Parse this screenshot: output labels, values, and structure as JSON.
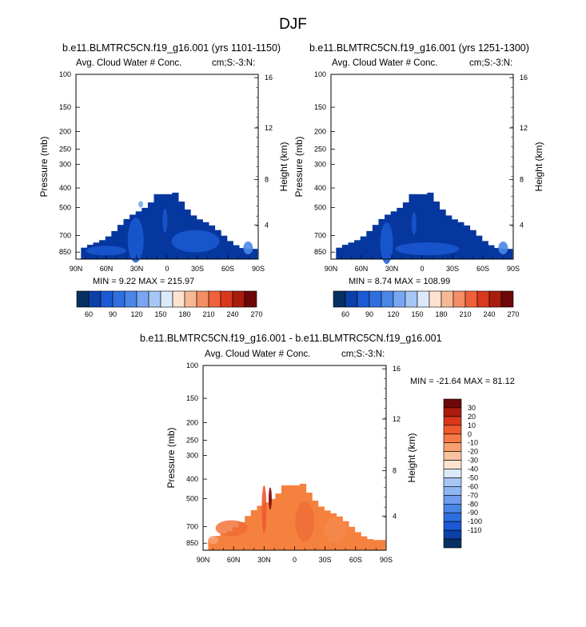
{
  "figure": {
    "title": "DJF"
  },
  "colors": {
    "cb1": [
      "#053061",
      "#0a40a8",
      "#1b5ad4",
      "#2e6fe0",
      "#4a86e8",
      "#78a6f0",
      "#a6c6f5",
      "#dbe9fb",
      "#fde3cf",
      "#f7b894",
      "#f48e64",
      "#f0603a",
      "#d9381c",
      "#aa1c0c",
      "#6d0808"
    ],
    "cb2": [
      "#6d0808",
      "#aa1c0c",
      "#d9381c",
      "#ef5a2e",
      "#f57a45",
      "#f7a070",
      "#f9c3a0",
      "#fde3cf",
      "#dbe9fb",
      "#a6c6f5",
      "#8db6f2",
      "#6f9cec",
      "#4a86e8",
      "#2e6fe0",
      "#1b5ad4",
      "#0a40a8",
      "#053061"
    ]
  },
  "chart_data": [
    {
      "type": "heatmap",
      "title": "b.e11.BLMTRC5CN.f19_g16.001 (yrs 1101-1150)",
      "left_label": "Avg. Cloud Water # Conc.",
      "right_label": "cm;S:-3:N:",
      "ylabel": "Pressure (mb)",
      "y2label": "Height (km)",
      "x_ticks": [
        "90N",
        "60N",
        "30N",
        "0",
        "30S",
        "60S",
        "90S"
      ],
      "y_ticks": [
        "100",
        "150",
        "200",
        "250",
        "300",
        "400",
        "500",
        "700",
        "850"
      ],
      "y2_ticks": [
        "16",
        "12",
        "8",
        "4"
      ],
      "xlim": [
        90,
        -90
      ],
      "ylim": [
        1000,
        100
      ],
      "stats_text": "MIN =   9.22  MAX = 215.97",
      "min": 9.22,
      "max": 215.97
    },
    {
      "type": "heatmap",
      "title": "b.e11.BLMTRC5CN.f19_g16.001 (yrs 1251-1300)",
      "left_label": "Avg. Cloud Water # Conc.",
      "right_label": "cm;S:-3:N:",
      "ylabel": "Pressure (mb)",
      "y2label": "Height (km)",
      "x_ticks": [
        "90N",
        "60N",
        "30N",
        "0",
        "30S",
        "60S",
        "90S"
      ],
      "y_ticks": [
        "100",
        "150",
        "200",
        "250",
        "300",
        "400",
        "500",
        "700",
        "850"
      ],
      "y2_ticks": [
        "16",
        "12",
        "8",
        "4"
      ],
      "xlim": [
        90,
        -90
      ],
      "ylim": [
        1000,
        100
      ],
      "stats_text": "MIN =   8.74  MAX = 108.99",
      "min": 8.74,
      "max": 108.99
    },
    {
      "type": "heatmap",
      "title": "b.e11.BLMTRC5CN.f19_g16.001 - b.e11.BLMTRC5CN.f19_g16.001",
      "left_label": "Avg. Cloud Water # Conc.",
      "right_label": "cm;S:-3:N:",
      "ylabel": "Pressure (mb)",
      "y2label": "Height (km)",
      "x_ticks": [
        "90N",
        "60N",
        "30N",
        "0",
        "30S",
        "60S",
        "90S"
      ],
      "y_ticks": [
        "100",
        "150",
        "200",
        "250",
        "300",
        "400",
        "500",
        "700",
        "850"
      ],
      "y2_ticks": [
        "16",
        "12",
        "8",
        "4"
      ],
      "xlim": [
        90,
        -90
      ],
      "ylim": [
        1000,
        100
      ],
      "stats_text": "MIN = -21.64  MAX =  81.12",
      "min": -21.64,
      "max": 81.12
    }
  ],
  "colorbar_top": {
    "labels": [
      "60",
      "90",
      "120",
      "150",
      "180",
      "210",
      "240",
      "270"
    ]
  },
  "colorbar_diff": {
    "labels": [
      "30",
      "20",
      "10",
      "0",
      "-10",
      "-20",
      "-30",
      "-40",
      "-50",
      "-60",
      "-70",
      "-80",
      "-90",
      "-100",
      "-110"
    ]
  }
}
